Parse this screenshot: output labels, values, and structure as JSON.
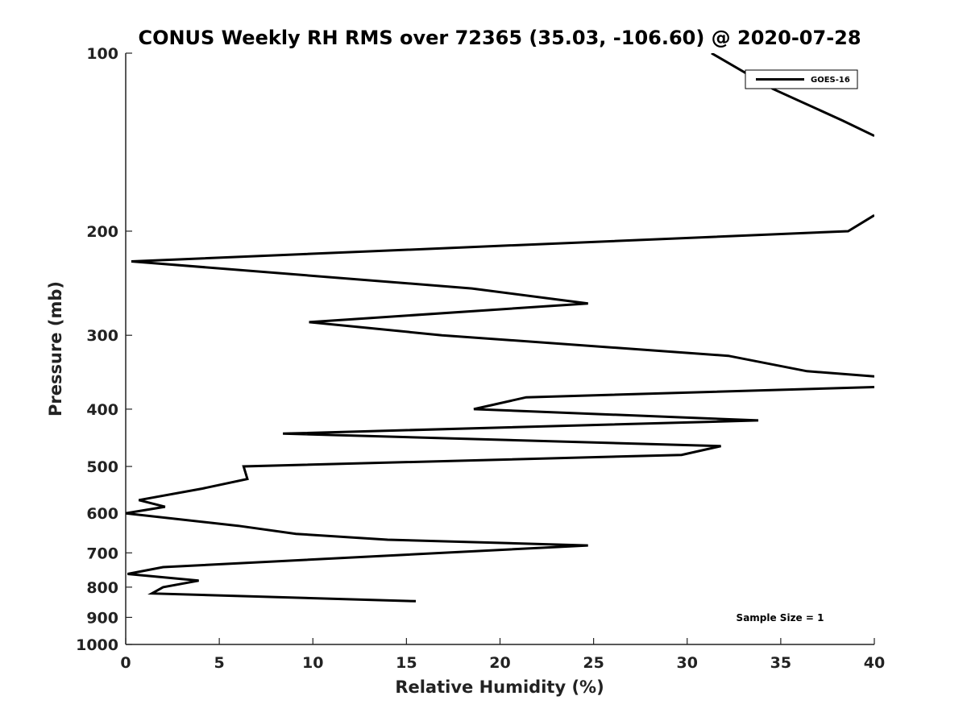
{
  "chart_data": {
    "type": "line",
    "title": "CONUS Weekly RH RMS over 72365 (35.03, -106.60) @ 2020-07-28",
    "xlabel": "Relative Humidity (%)",
    "ylabel": "Pressure (mb)",
    "xlim": [
      0,
      40
    ],
    "ylim": [
      100,
      1000
    ],
    "y_scale": "log",
    "y_reversed": true,
    "x_ticks": [
      0,
      5,
      10,
      15,
      20,
      25,
      30,
      35,
      40
    ],
    "y_ticks": [
      100,
      200,
      300,
      400,
      500,
      600,
      700,
      800,
      900,
      1000
    ],
    "grid": false,
    "legend_position": "top-right",
    "annotation": "Sample Size = 1",
    "series": [
      {
        "name": "GOES-16",
        "color": "#000000",
        "points": [
          [
            31.3,
            100
          ],
          [
            34.6,
            115
          ],
          [
            38.3,
            130
          ],
          [
            40.0,
            138
          ],
          [
            null,
            null
          ],
          [
            40.0,
            188
          ],
          [
            38.6,
            200
          ],
          [
            0.3,
            225
          ],
          [
            18.5,
            250
          ],
          [
            24.7,
            265
          ],
          [
            9.8,
            285
          ],
          [
            16.9,
            300
          ],
          [
            32.2,
            325
          ],
          [
            36.4,
            345
          ],
          [
            40.0,
            352
          ],
          [
            null,
            null
          ],
          [
            40.0,
            367
          ],
          [
            21.4,
            382
          ],
          [
            18.6,
            400
          ],
          [
            33.8,
            418
          ],
          [
            8.4,
            440
          ],
          [
            31.8,
            462
          ],
          [
            29.7,
            478
          ],
          [
            6.3,
            500
          ],
          [
            6.5,
            525
          ],
          [
            4.1,
            545
          ],
          [
            0.7,
            570
          ],
          [
            2.1,
            585
          ],
          [
            0.0,
            600
          ],
          [
            6.0,
            630
          ],
          [
            9.1,
            650
          ],
          [
            14.0,
            665
          ],
          [
            24.7,
            680
          ],
          [
            2.0,
            740
          ],
          [
            0.1,
            760
          ],
          [
            3.9,
            780
          ],
          [
            2.0,
            800
          ],
          [
            1.4,
            820
          ],
          [
            15.5,
            845
          ]
        ]
      }
    ]
  }
}
